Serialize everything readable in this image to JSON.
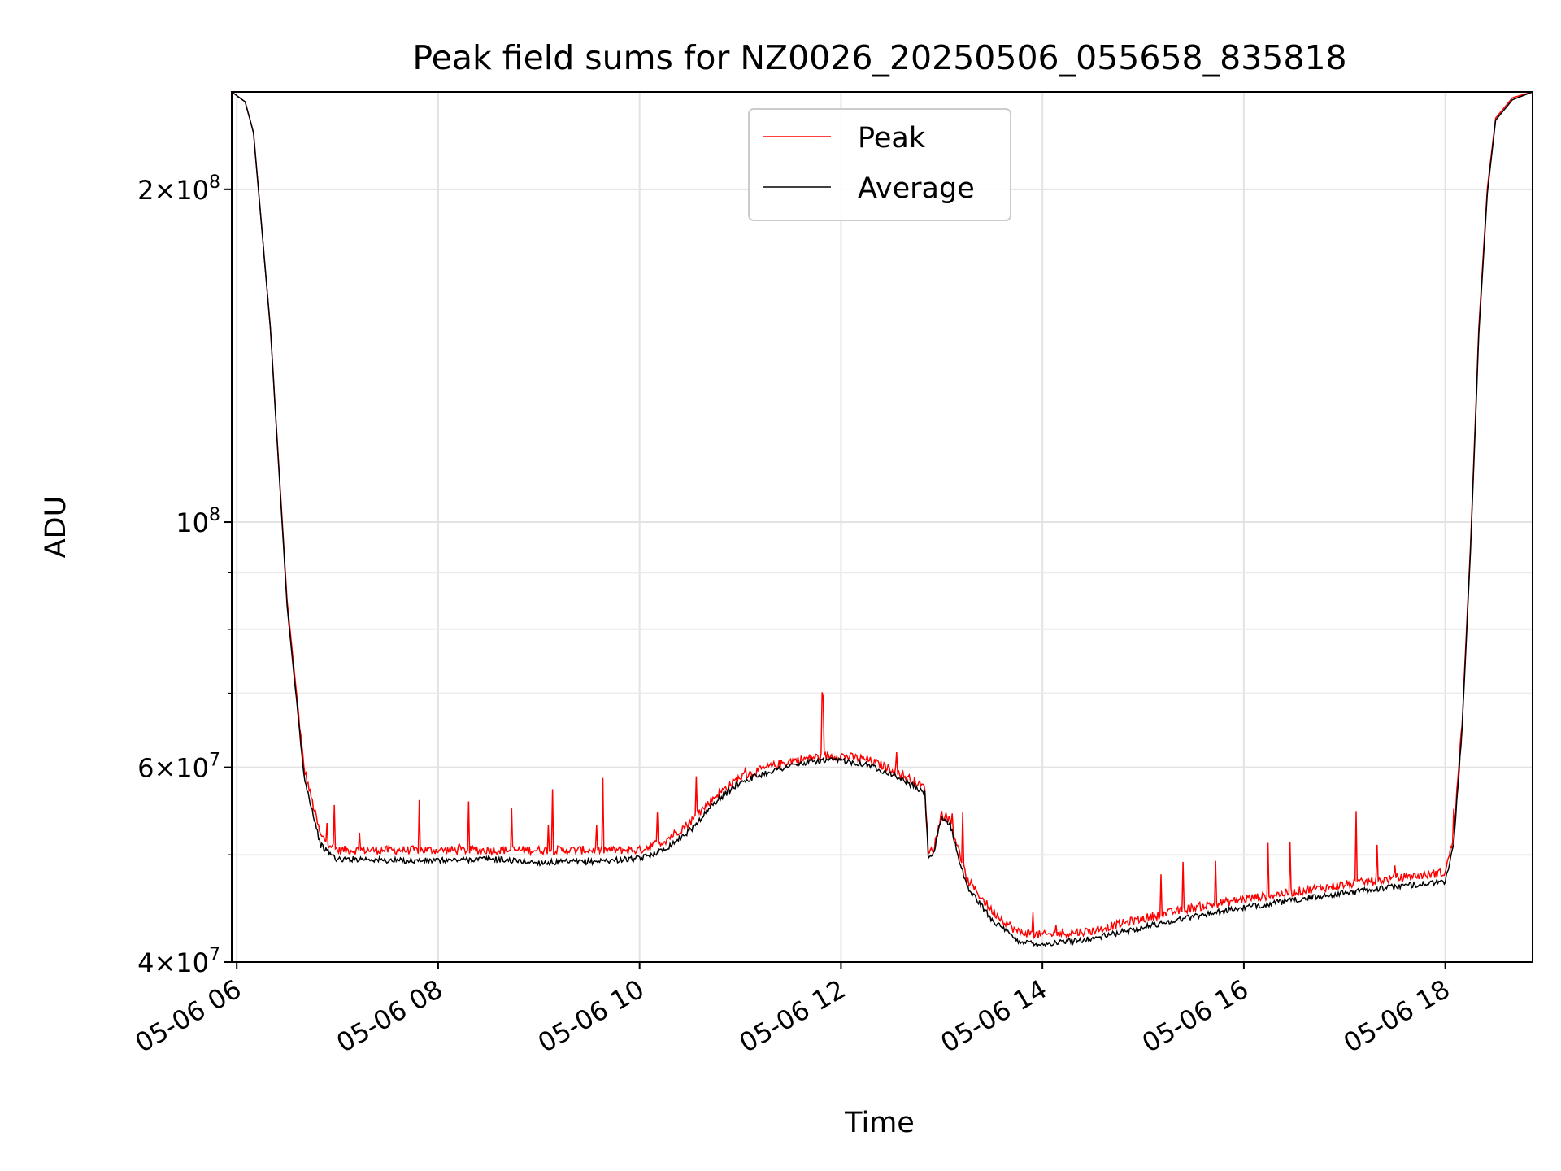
{
  "chart_data": {
    "type": "line",
    "title": "Peak field sums for NZ0026_20250506_055658_835818",
    "xlabel": "Time",
    "ylabel": "ADU",
    "y_scale": "log",
    "xlim": [
      "2025-05-06 05:57",
      "2025-05-06 18:52"
    ],
    "ylim": [
      40000000,
      245000000
    ],
    "x_ticks": [
      "05-06 06",
      "05-06 08",
      "05-06 10",
      "05-06 12",
      "05-06 14",
      "05-06 16",
      "05-06 18"
    ],
    "x_tick_values": [
      "2025-05-06 06:00",
      "2025-05-06 08:00",
      "2025-05-06 10:00",
      "2025-05-06 12:00",
      "2025-05-06 14:00",
      "2025-05-06 16:00",
      "2025-05-06 18:00"
    ],
    "y_ticks": [
      {
        "value": 40000000,
        "mantissa": "4",
        "exp": "7"
      },
      {
        "value": 60000000,
        "mantissa": "6",
        "exp": "7"
      },
      {
        "value": 100000000,
        "mantissa": "",
        "exp": "8"
      },
      {
        "value": 200000000,
        "mantissa": "2",
        "exp": "8"
      }
    ],
    "y_minor_ticks": [
      50000000,
      70000000,
      80000000,
      90000000
    ],
    "grid": true,
    "legend_position": "top-center",
    "series": [
      {
        "name": "Peak",
        "color": "#ff0000",
        "x": [
          "05:57",
          "06:05",
          "06:10",
          "06:20",
          "06:30",
          "06:40",
          "06:50",
          "07:00",
          "07:15",
          "07:30",
          "08:00",
          "08:30",
          "09:00",
          "09:30",
          "10:00",
          "10:15",
          "10:30",
          "10:45",
          "11:00",
          "11:15",
          "11:30",
          "11:45",
          "12:00",
          "12:15",
          "12:30",
          "12:40",
          "12:50",
          "12:52",
          "12:55",
          "13:00",
          "13:05",
          "13:10",
          "13:15",
          "13:30",
          "13:45",
          "14:00",
          "14:30",
          "15:00",
          "15:30",
          "16:00",
          "16:30",
          "17:00",
          "17:30",
          "18:00",
          "18:05",
          "18:10",
          "18:15",
          "18:20",
          "18:25",
          "18:30",
          "18:40",
          "18:52"
        ],
        "y": [
          245000000,
          240000000,
          225000000,
          150000000,
          85000000,
          60000000,
          52000000,
          50500000,
          50500000,
          50500000,
          50500000,
          50500000,
          50500000,
          50500000,
          50500000,
          51500000,
          53500000,
          56500000,
          58800000,
          59900000,
          60800000,
          61300000,
          61500000,
          61000000,
          59800000,
          58700000,
          57500000,
          50500000,
          50500000,
          54500000,
          53800000,
          50500000,
          47500000,
          44500000,
          42600000,
          42300000,
          42700000,
          43800000,
          44800000,
          45600000,
          46300000,
          47000000,
          47600000,
          48200000,
          52000000,
          66000000,
          95000000,
          150000000,
          200000000,
          232000000,
          242000000,
          245000000
        ]
      },
      {
        "name": "Average",
        "color": "#000000",
        "x": [
          "05:57",
          "06:05",
          "06:10",
          "06:20",
          "06:30",
          "06:40",
          "06:50",
          "07:00",
          "07:15",
          "07:30",
          "08:00",
          "08:30",
          "09:00",
          "09:30",
          "10:00",
          "10:15",
          "10:30",
          "10:45",
          "11:00",
          "11:15",
          "11:30",
          "11:45",
          "12:00",
          "12:15",
          "12:30",
          "12:40",
          "12:50",
          "12:52",
          "12:55",
          "13:00",
          "13:05",
          "13:10",
          "13:15",
          "13:30",
          "13:45",
          "14:00",
          "14:30",
          "15:00",
          "15:30",
          "16:00",
          "16:30",
          "17:00",
          "17:30",
          "18:00",
          "18:05",
          "18:10",
          "18:15",
          "18:20",
          "18:25",
          "18:30",
          "18:40",
          "18:52"
        ],
        "y": [
          245000000,
          240000000,
          225000000,
          150000000,
          84000000,
          59000000,
          51000000,
          49500000,
          49600000,
          49400000,
          49400000,
          49600000,
          49200000,
          49300000,
          49600000,
          50600000,
          52600000,
          55800000,
          58200000,
          59300000,
          60200000,
          60800000,
          60900000,
          60400000,
          59200000,
          58100000,
          56800000,
          49900000,
          50000000,
          54000000,
          53300000,
          49800000,
          46800000,
          43700000,
          41800000,
          41500000,
          42000000,
          43000000,
          44000000,
          44800000,
          45500000,
          46200000,
          46800000,
          47300000,
          51000000,
          65000000,
          94000000,
          148000000,
          198000000,
          231000000,
          241000000,
          245000000
        ]
      }
    ]
  }
}
